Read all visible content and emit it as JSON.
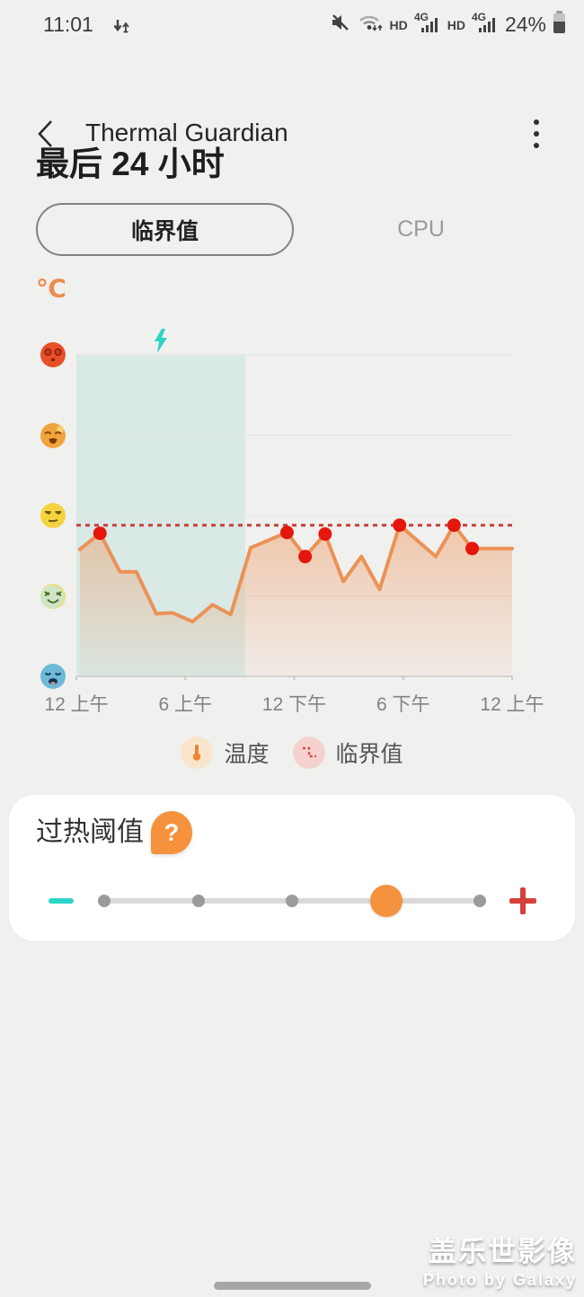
{
  "status_bar": {
    "time": "11:01",
    "battery_percent": "24%",
    "hd_label_1": "HD",
    "hd_label_2": "HD",
    "network_label_1": "4G",
    "network_label_2": "4G",
    "icons": [
      "data-updown-icon",
      "mute-icon",
      "wifi-icon",
      "signal-icon",
      "signal-icon",
      "battery-icon"
    ]
  },
  "header": {
    "title": "Thermal Guardian"
  },
  "period_heading": "最后 24 小时",
  "tabs": [
    {
      "label": "临界值",
      "selected": true
    },
    {
      "label": "CPU",
      "selected": false
    }
  ],
  "chart_data": {
    "type": "line",
    "title": "最后 24 小时",
    "unit_label": "℃",
    "x_range_hours": [
      0,
      24
    ],
    "x_tick_hours": [
      0,
      6,
      12,
      18,
      24
    ],
    "x_tick_labels": [
      "12 上午",
      "6 上午",
      "12 下午",
      "6 下午",
      "12 上午"
    ],
    "y_axis": "temperature mood level (0 = coldest, 4 = hottest), gridline per level",
    "y_levels": [
      {
        "level": 4,
        "icon": "dizzy-hot-face",
        "color": "#e8502a"
      },
      {
        "level": 3,
        "icon": "weary-hot-face",
        "color": "#f1a33c"
      },
      {
        "level": 2,
        "icon": "unamused-warm-face",
        "color": "#f5d33f"
      },
      {
        "level": 1,
        "icon": "relieved-cool-face",
        "color": "#cfe5c5"
      },
      {
        "level": 0,
        "icon": "sleepy-cold-face",
        "color": "#6fb9d8"
      }
    ],
    "series": [
      {
        "name": "温度",
        "color": "#ea9257",
        "points": [
          [
            0.2,
            1.58
          ],
          [
            1.3,
            1.78
          ],
          [
            2.4,
            1.3
          ],
          [
            3.3,
            1.3
          ],
          [
            4.4,
            0.78
          ],
          [
            5.3,
            0.79
          ],
          [
            6.4,
            0.68
          ],
          [
            7.5,
            0.89
          ],
          [
            8.5,
            0.77
          ],
          [
            9.6,
            1.6
          ],
          [
            11.6,
            1.79
          ],
          [
            12.6,
            1.49
          ],
          [
            13.7,
            1.77
          ],
          [
            14.7,
            1.18
          ],
          [
            15.7,
            1.49
          ],
          [
            16.7,
            1.08
          ],
          [
            17.8,
            1.88
          ],
          [
            19.8,
            1.49
          ],
          [
            20.8,
            1.88
          ],
          [
            21.8,
            1.59
          ],
          [
            24,
            1.59
          ]
        ],
        "highlight_point_indices": [
          1,
          10,
          11,
          12,
          16,
          18,
          19
        ],
        "highlight_color": "#e3170d"
      }
    ],
    "threshold": {
      "name": "临界值",
      "level": 1.88,
      "style": "dashed",
      "color": "#c4403a"
    },
    "charging_region": {
      "hours": [
        0,
        9.3
      ],
      "fill": "rgba(100,199,190,0.16)",
      "icon": "charging-bolt-icon",
      "icon_color": "#2bd4c6"
    },
    "grid": true,
    "legend_position": "bottom"
  },
  "legend": [
    {
      "label": "温度",
      "icon": "thermometer-icon"
    },
    {
      "label": "临界值",
      "icon": "threshold-dashed-icon"
    }
  ],
  "threshold_card": {
    "title": "过热阈值",
    "help_badge": "?",
    "slider": {
      "steps": 5,
      "selected_index": 3
    }
  },
  "watermark": {
    "line1": "盖乐世影像",
    "line2": "Photo by Galaxy"
  },
  "colors": {
    "accent_orange": "#f5923e",
    "line_orange": "#ea9257",
    "dot_red": "#e3170d",
    "threshold_red": "#c4403a",
    "teal": "#2bd4c6",
    "plus_red": "#d6413d",
    "background": "#f0f0ee",
    "card_background": "#ffffff"
  }
}
